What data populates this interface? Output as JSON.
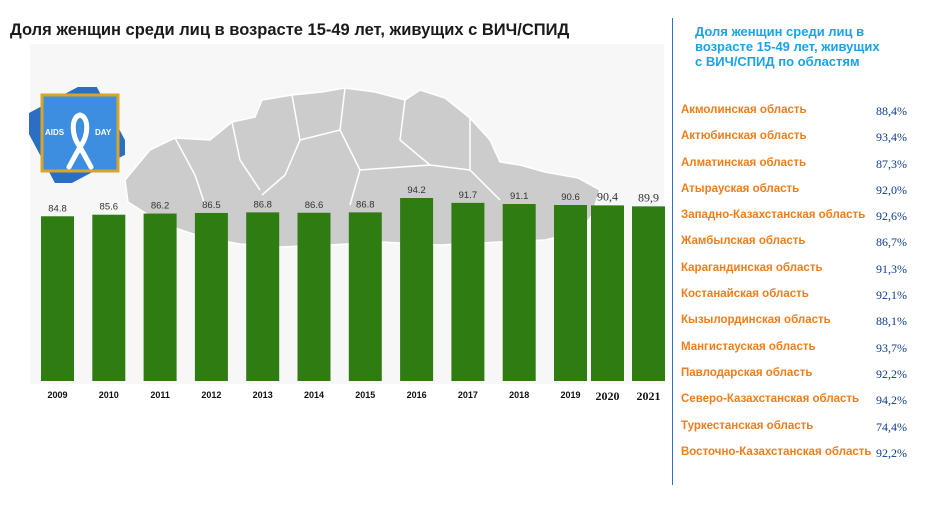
{
  "title": "Доля женщин среди лиц в возрасте 15-49 лет, живущих с ВИЧ/СПИД",
  "logo": {
    "left": "AIDS",
    "right": "DAY",
    "icon": "ribbon-icon"
  },
  "colors": {
    "bar": "#2f7d12",
    "map": "#c9c9c9",
    "region_name": "#f07d1c",
    "region_value": "#0f3d8c",
    "region_title": "#1aa3e8",
    "divider": "#2f6fd0"
  },
  "chart_data": {
    "type": "bar",
    "title": "Доля женщин среди лиц в возрасте 15-49 лет, живущих с ВИЧ/СПИД",
    "categories": [
      "2009",
      "2010",
      "2011",
      "2012",
      "2013",
      "2014",
      "2015",
      "2016",
      "2017",
      "2018",
      "2019",
      "2020",
      "2021"
    ],
    "values": [
      84.8,
      85.6,
      86.2,
      86.5,
      86.8,
      86.6,
      86.8,
      94.2,
      91.7,
      91.1,
      90.6,
      90.4,
      89.9
    ],
    "value_labels": [
      "84.8",
      "85.6",
      "86.2",
      "86.5",
      "86.8",
      "86.6",
      "86.8",
      "94.2",
      "91.7",
      "91.1",
      "90.6",
      "90,4",
      "89,9"
    ],
    "ylim": [
      0,
      100
    ],
    "xlabel": "",
    "ylabel": "",
    "grid": false
  },
  "regions": {
    "title": "Доля женщин среди лиц в возрасте 15-49 лет, живущих с ВИЧ/СПИД по областям",
    "items": [
      {
        "name": "Акмолинская область",
        "value": "88,4%"
      },
      {
        "name": "Актюбинская область",
        "value": "93,4%"
      },
      {
        "name": "Алматинская область",
        "value": "87,3%"
      },
      {
        "name": "Атырауская область",
        "value": "92,0%"
      },
      {
        "name": "Западно-Казахстанская область",
        "value": "92,6%"
      },
      {
        "name": "Жамбылская область",
        "value": "86,7%"
      },
      {
        "name": "Карагандинская область",
        "value": "91,3%"
      },
      {
        "name": "Костанайская область",
        "value": "92,1%"
      },
      {
        "name": "Кызылординская область",
        "value": "88,1%"
      },
      {
        "name": "Мангистауская область",
        "value": "93,7%"
      },
      {
        "name": "Павлодарская область",
        "value": "92,2%"
      },
      {
        "name": "Северо-Казахстанская область",
        "value": "94,2%"
      },
      {
        "name": "Туркестанская область",
        "value": "74,4%"
      },
      {
        "name": "Восточно-Казахстанская область",
        "value": "92,2%"
      }
    ]
  }
}
